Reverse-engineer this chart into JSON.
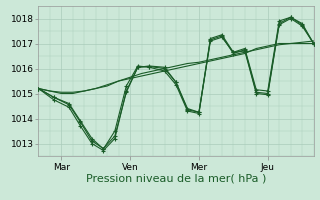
{
  "bg_color": "#cce8d8",
  "grid_color": "#aaccbb",
  "line_color": "#1a5c28",
  "xlabel": "Pression niveau de la mer( hPa )",
  "xlabel_fontsize": 8,
  "ylim": [
    1012.5,
    1018.5
  ],
  "yticks": [
    1013,
    1014,
    1015,
    1016,
    1017,
    1018
  ],
  "xtick_labels": [
    "Mar",
    "Ven",
    "Mer",
    "Jeu"
  ],
  "xtick_positions": [
    12,
    48,
    84,
    120
  ],
  "xlim": [
    0,
    144
  ],
  "tick_fontsize": 6.5,
  "figsize": [
    3.2,
    2.0
  ],
  "dpi": 100,
  "series1_x": [
    0,
    6,
    12,
    18,
    24,
    30,
    36,
    42,
    48,
    54,
    60,
    66,
    72,
    78,
    84,
    90,
    96,
    102,
    108,
    114,
    120,
    126,
    132,
    138,
    144
  ],
  "series1_y": [
    1015.2,
    1015.1,
    1015.0,
    1015.0,
    1015.1,
    1015.2,
    1015.3,
    1015.5,
    1015.6,
    1015.7,
    1015.8,
    1015.9,
    1016.0,
    1016.1,
    1016.2,
    1016.3,
    1016.4,
    1016.5,
    1016.6,
    1016.8,
    1016.9,
    1017.0,
    1017.0,
    1017.0,
    1017.0
  ],
  "series2_x": [
    0,
    6,
    12,
    18,
    24,
    30,
    36,
    42,
    48,
    54,
    60,
    66,
    72,
    78,
    84,
    90,
    96,
    102,
    108,
    114,
    120,
    126,
    132,
    138,
    144
  ],
  "series2_y": [
    1015.2,
    1015.1,
    1015.05,
    1015.05,
    1015.1,
    1015.2,
    1015.35,
    1015.5,
    1015.65,
    1015.8,
    1015.9,
    1016.0,
    1016.1,
    1016.2,
    1016.25,
    1016.35,
    1016.45,
    1016.55,
    1016.65,
    1016.75,
    1016.85,
    1016.95,
    1017.0,
    1017.05,
    1017.1
  ],
  "series3_x": [
    0,
    8,
    16,
    22,
    28,
    34,
    40,
    46,
    52,
    58,
    66,
    72,
    78,
    84,
    90,
    96,
    102,
    108,
    114,
    120,
    126,
    132,
    138,
    144
  ],
  "series3_y": [
    1015.2,
    1014.85,
    1014.55,
    1013.85,
    1013.1,
    1012.8,
    1013.3,
    1015.05,
    1016.05,
    1016.08,
    1016.0,
    1015.45,
    1014.4,
    1014.25,
    1017.2,
    1017.35,
    1016.65,
    1016.8,
    1015.15,
    1015.1,
    1017.9,
    1018.05,
    1017.75,
    1017.0
  ],
  "series4_x": [
    0,
    8,
    16,
    22,
    28,
    34,
    40,
    46,
    52,
    58,
    66,
    72,
    78,
    84,
    90,
    96,
    102,
    108,
    114,
    120,
    126,
    132,
    138,
    144
  ],
  "series4_y": [
    1015.2,
    1014.85,
    1014.6,
    1013.9,
    1013.2,
    1012.78,
    1013.5,
    1015.3,
    1016.1,
    1016.05,
    1015.9,
    1015.35,
    1014.3,
    1014.2,
    1017.15,
    1017.3,
    1016.6,
    1016.75,
    1015.05,
    1015.0,
    1017.8,
    1018.05,
    1017.8,
    1017.0
  ],
  "series5_x": [
    0,
    8,
    16,
    22,
    28,
    34,
    40,
    46,
    52,
    58,
    66,
    72,
    78,
    84,
    90,
    96,
    102,
    108,
    114,
    120,
    126,
    132,
    138,
    144
  ],
  "series5_y": [
    1015.2,
    1014.75,
    1014.45,
    1013.7,
    1013.0,
    1012.72,
    1013.2,
    1015.1,
    1016.05,
    1016.1,
    1016.05,
    1015.45,
    1014.35,
    1014.25,
    1017.1,
    1017.25,
    1016.65,
    1016.7,
    1015.0,
    1014.95,
    1017.75,
    1018.0,
    1017.7,
    1017.0
  ]
}
